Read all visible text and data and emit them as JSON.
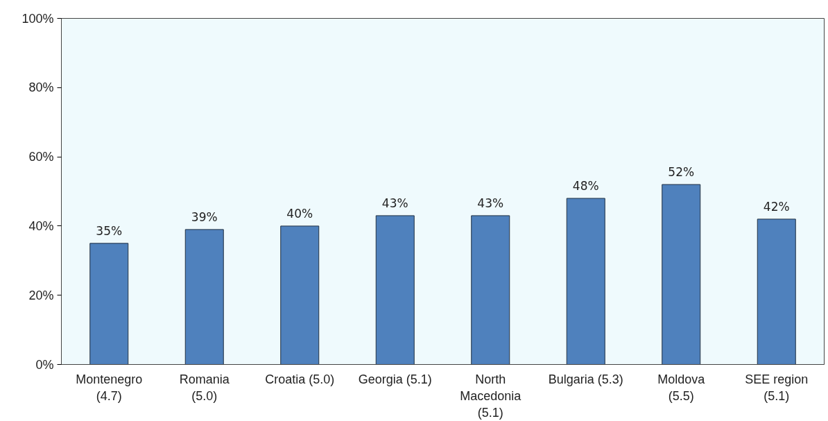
{
  "chart_data": {
    "type": "bar",
    "categories": [
      "Montenegro\n(4.7)",
      "Romania\n(5.0)",
      "Croatia (5.0)",
      "Georgia (5.1)",
      "North\nMacedonia\n(5.1)",
      "Bulgaria (5.3)",
      "Moldova\n(5.5)",
      "SEE region\n(5.1)"
    ],
    "values": [
      35,
      39,
      40,
      43,
      43,
      48,
      52,
      42
    ],
    "value_labels": [
      "35%",
      "39%",
      "40%",
      "43%",
      "43%",
      "48%",
      "52%",
      "42%"
    ],
    "color": "#4f81bd",
    "ylim": [
      0,
      100
    ],
    "yticks": [
      {
        "value": 0,
        "label": "0%"
      },
      {
        "value": 20,
        "label": "20%"
      },
      {
        "value": 40,
        "label": "40%"
      },
      {
        "value": 60,
        "label": "60%"
      },
      {
        "value": 80,
        "label": "80%"
      },
      {
        "value": 100,
        "label": "100%"
      }
    ],
    "grid": false
  }
}
